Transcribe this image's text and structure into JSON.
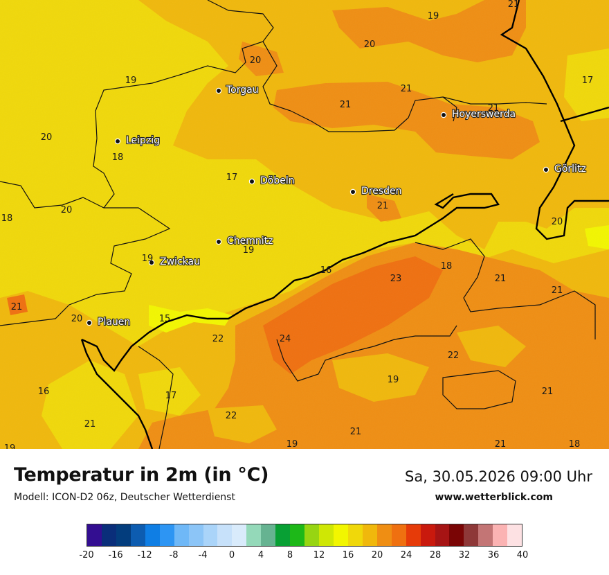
{
  "title": "Temperatur in 2m (in °C)",
  "model": "Modell: ICON-D2 06z, Deutscher Wetterdienst",
  "datetime": "Sa, 30.05.2026 09:00 Uhr",
  "site": "www.wetterblick.com",
  "cities": [
    {
      "name": "Torgau"
    },
    {
      "name": "Hoyerswerda"
    },
    {
      "name": "Leipzig"
    },
    {
      "name": "Döbeln"
    },
    {
      "name": "Dresden"
    },
    {
      "name": "Görlitz"
    },
    {
      "name": "Chemnitz"
    },
    {
      "name": "Zwickau"
    },
    {
      "name": "Plauen"
    }
  ],
  "values": [
    "19",
    "21",
    "20",
    "21",
    "19",
    "20",
    "17",
    "21",
    "21",
    "20",
    "18",
    "17",
    "20",
    "18",
    "21",
    "20",
    "19",
    "19",
    "16",
    "18",
    "23",
    "21",
    "21",
    "21",
    "20",
    "15",
    "22",
    "24",
    "22",
    "16",
    "19",
    "21",
    "17",
    "21",
    "22",
    "21",
    "21",
    "19",
    "19",
    "21",
    "18"
  ],
  "legend": {
    "colors": [
      "#330e91",
      "#0a2e7a",
      "#033d7d",
      "#0d5cb0",
      "#0f7ee4",
      "#2d95f3",
      "#6fb8f7",
      "#8cc5f7",
      "#aad4f9",
      "#c7e1fa",
      "#d9ebfb",
      "#94d9b9",
      "#66b391",
      "#08a034",
      "#1db818",
      "#97d512",
      "#cfe705",
      "#f2f600",
      "#f0d80a",
      "#f0b80c",
      "#ef8e13",
      "#ef7010",
      "#e63b09",
      "#c9190d",
      "#a61414",
      "#7a0505",
      "#8e3838",
      "#c37575",
      "#fbb3b3",
      "#fde1e3"
    ],
    "ticks": [
      "-20",
      "-16",
      "-12",
      "-8",
      "-4",
      "0",
      "4",
      "8",
      "12",
      "16",
      "20",
      "24",
      "28",
      "32",
      "36",
      "40"
    ]
  }
}
